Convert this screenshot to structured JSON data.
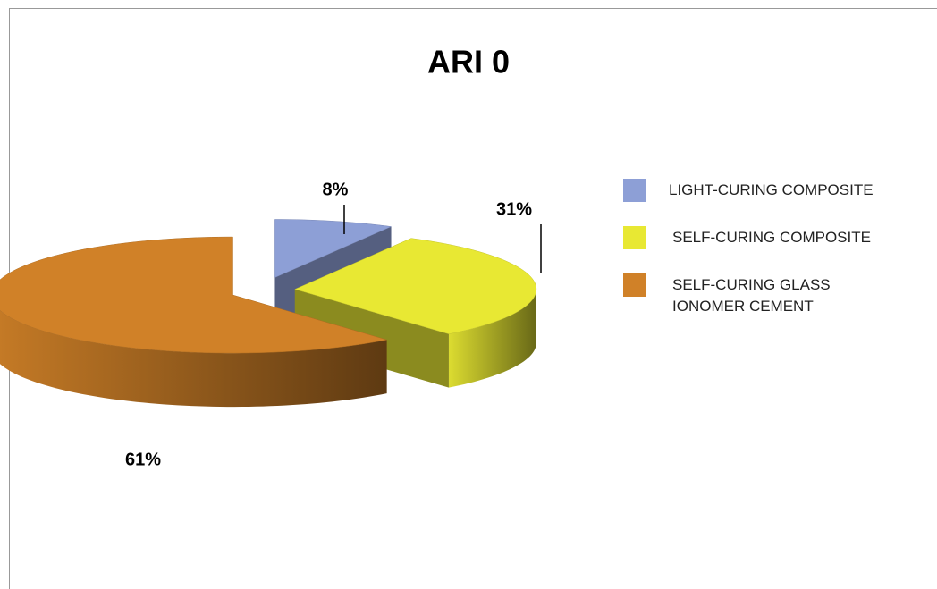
{
  "chart_data": {
    "type": "pie",
    "title": "ARI 0",
    "categories": [
      "LIGHT-CURING COMPOSITE",
      "SELF-CURING COMPOSITE",
      "SELF-CURING GLASS IONOMER CEMENT"
    ],
    "values": [
      8,
      31,
      61
    ],
    "value_labels": [
      "8%",
      "31%",
      "61%"
    ],
    "colors": [
      "#8d9fd6",
      "#e8e833",
      "#d08128"
    ],
    "legend": "right"
  }
}
